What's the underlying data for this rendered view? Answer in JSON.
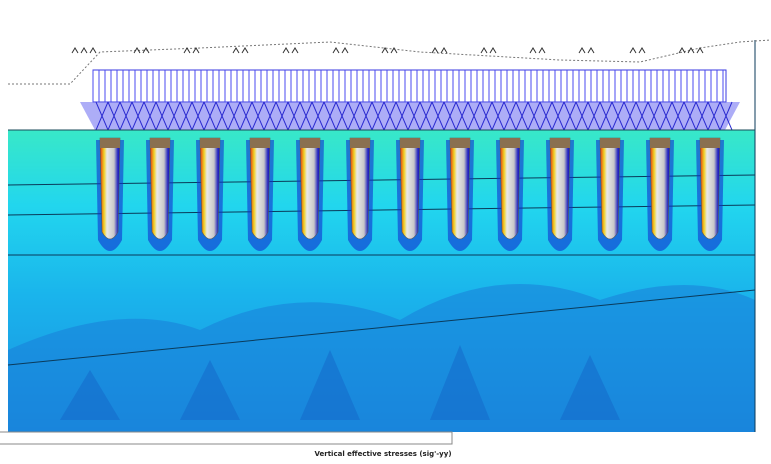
{
  "caption": "Vertical effective stresses (sig'-yy)"
}
